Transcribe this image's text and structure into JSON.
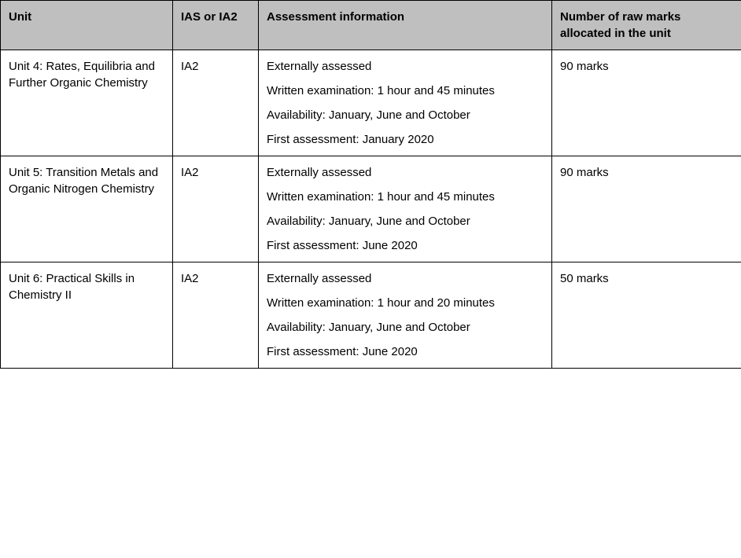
{
  "table": {
    "headers": {
      "unit": "Unit",
      "level": "IAS or IA2",
      "assessment": "Assessment information",
      "marks": "Number of raw marks allocated in the unit"
    },
    "rows": [
      {
        "unit": "Unit 4: Rates, Equilibria and Further Organic Chemistry",
        "level": "IA2",
        "assessment_lines": [
          "Externally assessed",
          "Written examination: 1 hour and 45 minutes",
          "Availability: January, June and October",
          "First assessment: January 2020"
        ],
        "marks": "90 marks"
      },
      {
        "unit": "Unit 5: Transition Metals and Organic Nitrogen Chemistry",
        "level": "IA2",
        "assessment_lines": [
          "Externally assessed",
          "Written examination: 1 hour and 45 minutes",
          "Availability: January, June and October",
          "First assessment: June 2020"
        ],
        "marks": "90 marks"
      },
      {
        "unit": "Unit 6: Practical Skills in Chemistry II",
        "level": "IA2",
        "assessment_lines": [
          "Externally assessed",
          "Written examination: 1 hour and 20 minutes",
          "Availability: January, June and October",
          "First assessment: June 2020"
        ],
        "marks": "50 marks"
      }
    ]
  }
}
